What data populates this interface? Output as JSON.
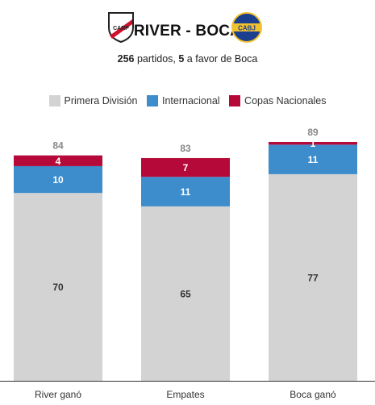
{
  "header": {
    "title": "RIVER - BOCA",
    "subtitle_total": "256",
    "subtitle_mid": " partidos, ",
    "subtitle_wins": "5",
    "subtitle_end": " a favor de Boca",
    "river_crest_text": "CARP",
    "boca_crest_text": "CABJ"
  },
  "colors": {
    "primera": "#d3d3d3",
    "internacional": "#3d8ccc",
    "copas": "#b5093a",
    "boca_blue": "#1b3f8f",
    "boca_gold": "#f2c22e",
    "river_red": "#d0102c"
  },
  "legend": [
    {
      "label": "Primera División",
      "color": "#d3d3d3"
    },
    {
      "label": "Internacional",
      "color": "#3d8ccc"
    },
    {
      "label": "Copas Nacionales",
      "color": "#b5093a"
    }
  ],
  "chart_data": {
    "type": "bar",
    "stacked": true,
    "categories": [
      "River ganó",
      "Empates",
      "Boca ganó"
    ],
    "series": [
      {
        "name": "Primera División",
        "values": [
          70,
          65,
          77
        ],
        "color": "#d3d3d3"
      },
      {
        "name": "Internacional",
        "values": [
          10,
          11,
          11
        ],
        "color": "#3d8ccc"
      },
      {
        "name": "Copas Nacionales",
        "values": [
          4,
          7,
          1
        ],
        "color": "#b5093a"
      }
    ],
    "totals": [
      84,
      83,
      89
    ],
    "ylim": [
      0,
      89
    ],
    "grid": false,
    "legend_position": "top"
  }
}
